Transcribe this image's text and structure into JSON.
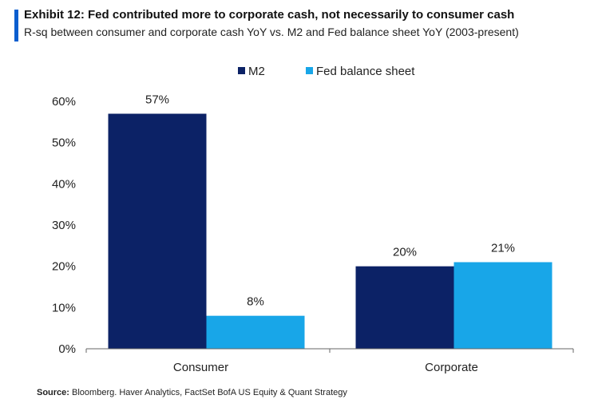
{
  "header": {
    "title": "Exhibit 12: Fed contributed more to corporate cash, not necessarily to consumer cash",
    "subtitle": "R-sq between consumer and corporate cash YoY vs. M2 and Fed balance sheet YoY (2003-present)"
  },
  "source": {
    "label": "Source:",
    "text": "Bloomberg. Haver Analytics, FactSet BofA US Equity & Quant Strategy"
  },
  "colors": {
    "accent": "#0b5ecf",
    "m2": "#0c2266",
    "fed": "#18a6e8",
    "axis": "#666666"
  },
  "chart_data": {
    "type": "bar",
    "title": "Exhibit 12: Fed contributed more to corporate cash, not necessarily to consumer cash",
    "subtitle": "R-sq between consumer and corporate cash YoY vs. M2 and Fed balance sheet YoY (2003-present)",
    "categories": [
      "Consumer",
      "Corporate"
    ],
    "series": [
      {
        "name": "M2",
        "values": [
          57,
          20
        ],
        "labels": [
          "57%",
          "20%"
        ]
      },
      {
        "name": "Fed balance sheet",
        "values": [
          8,
          21
        ],
        "labels": [
          "8%",
          "21%"
        ]
      }
    ],
    "ylim": [
      0,
      60
    ],
    "yticks": [
      0,
      10,
      20,
      30,
      40,
      50,
      60
    ],
    "ytick_labels": [
      "0%",
      "10%",
      "20%",
      "30%",
      "40%",
      "50%",
      "60%"
    ],
    "xlabel": "",
    "ylabel": "",
    "legend_position": "top-center",
    "grid": false
  }
}
